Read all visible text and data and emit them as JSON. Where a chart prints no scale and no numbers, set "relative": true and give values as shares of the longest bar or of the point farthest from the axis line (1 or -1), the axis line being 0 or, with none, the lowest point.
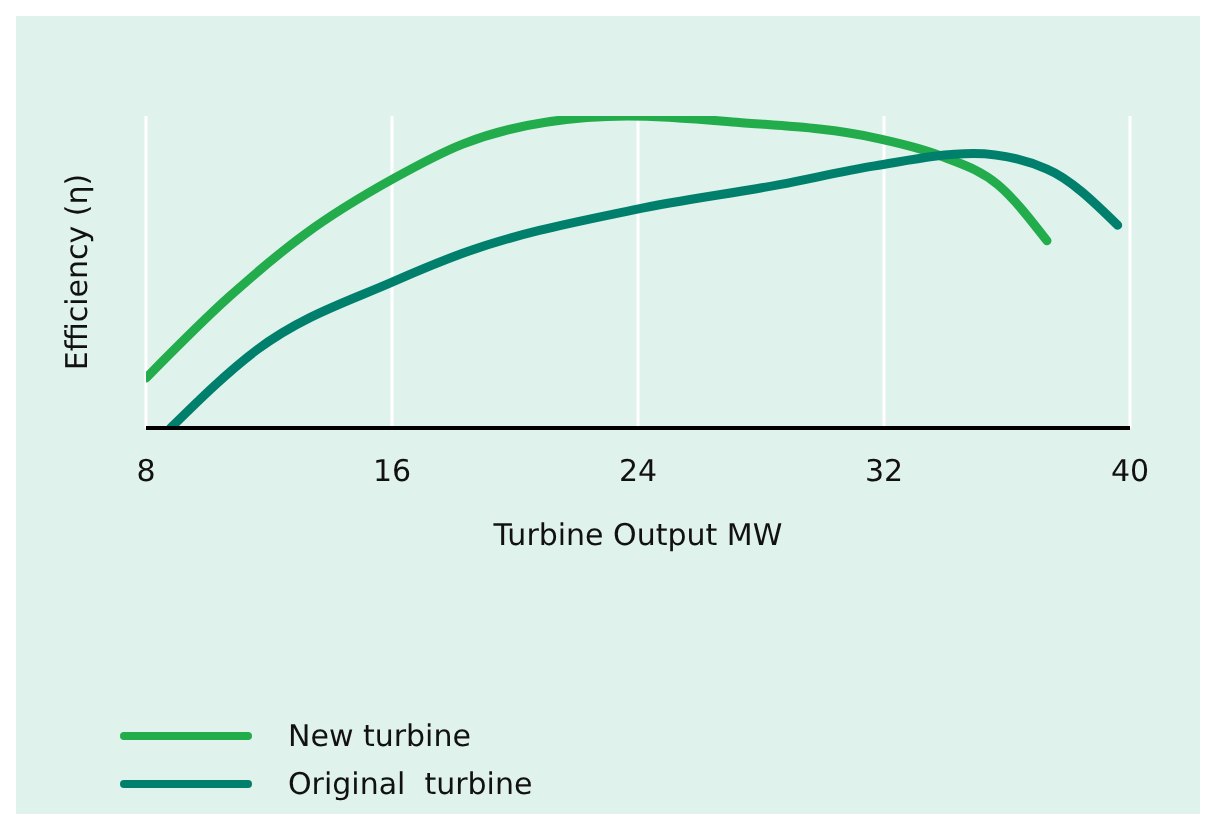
{
  "chart_data": {
    "type": "line",
    "xlabel": "Turbine Output MW",
    "ylabel": "Efficiency (η)",
    "relative": true,
    "xlim": [
      8,
      40
    ],
    "xticks": [
      8,
      16,
      24,
      32,
      40
    ],
    "grid": "x",
    "legend": "bottom left",
    "marker": "none",
    "line_style": "solid",
    "series": [
      {
        "name": "New turbine",
        "color": "#22ac4c",
        "x": [
          8,
          10.7,
          13.15,
          16.06,
          18.3,
          21.0,
          23.66,
          27.2,
          31.7,
          33.9,
          35.7,
          37.3
        ],
        "values": [
          0.16,
          0.42,
          0.62,
          0.8,
          0.91,
          0.98,
          1.0,
          0.98,
          0.93,
          0.87,
          0.78,
          0.6
        ]
      },
      {
        "name": "Original  turbine",
        "color": "#00806c",
        "x": [
          8.8,
          11.6,
          16.06,
          18.3,
          23.9,
          28.6,
          31.7,
          34.9,
          37.3,
          39.6
        ],
        "values": [
          0,
          0.25,
          0.47,
          0.56,
          0.7,
          0.78,
          0.84,
          0.88,
          0.83,
          0.65
        ]
      }
    ]
  }
}
